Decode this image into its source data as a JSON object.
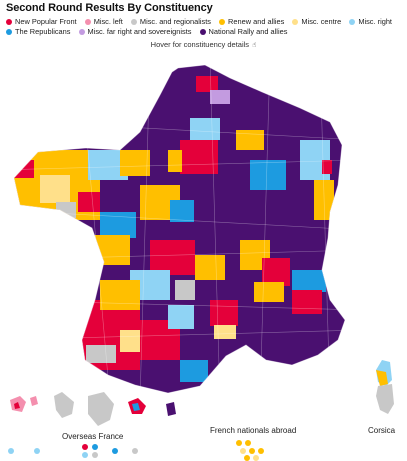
{
  "title": "Second Round Results By Constituency",
  "hint": "Hover for constituency details",
  "legend": [
    {
      "label": "New Popular Front",
      "color": "#e4003a"
    },
    {
      "label": "Misc. left",
      "color": "#f48fae"
    },
    {
      "label": "Misc. and regionalists",
      "color": "#c8c8c8"
    },
    {
      "label": "Renew and allies",
      "color": "#ffbf00"
    },
    {
      "label": "Misc. centre",
      "color": "#ffe08a"
    },
    {
      "label": "Misc. right",
      "color": "#8fd3f4"
    },
    {
      "label": "The Republicans",
      "color": "#1d9be0"
    },
    {
      "label": "Misc. far right and sovereignists",
      "color": "#c39be0"
    },
    {
      "label": "National Rally and allies",
      "color": "#4a1070"
    }
  ],
  "labels": {
    "overseas": "Overseas France",
    "abroad": "French nationals abroad",
    "corsica": "Corsica"
  },
  "colors": {
    "nfp": "#e4003a",
    "left": "#f48fae",
    "misc": "#c8c8c8",
    "renew": "#ffbf00",
    "centre": "#ffe08a",
    "right": "#8fd3f4",
    "lr": "#1d9be0",
    "far": "#c39be0",
    "rn": "#4a1070"
  }
}
